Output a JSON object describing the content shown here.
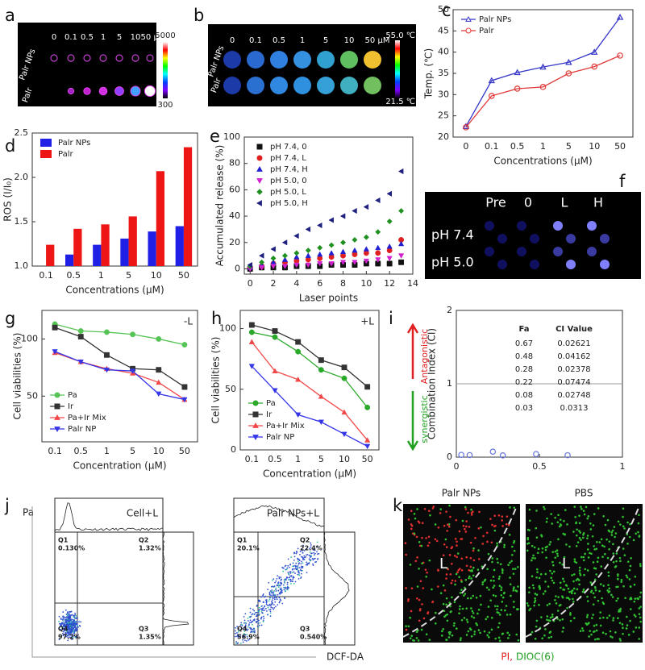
{
  "panels": {
    "a": {
      "label": "a",
      "columns": [
        "0",
        "0.1",
        "0.5",
        "1",
        "5",
        "10",
        "50 μM"
      ],
      "rows": [
        "Palr NPs",
        "Palr"
      ],
      "scale_max": "5000",
      "scale_min": "300"
    },
    "b": {
      "label": "b",
      "columns": [
        "0",
        "0.1",
        "0.5",
        "1",
        "5",
        "10",
        "50 μM"
      ],
      "rows": [
        "Palr NPs",
        "Palr"
      ],
      "scale_max": "55.0 ℃",
      "scale_min": "21.5 ℃"
    },
    "f": {
      "label": "f",
      "columns": [
        "Pre",
        "0",
        "L",
        "H"
      ],
      "rows": [
        "pH 7.4",
        "pH 5.0"
      ]
    },
    "j": {
      "label": "j",
      "y_label": "Pa",
      "x_label": "DCF-DA",
      "plots": [
        {
          "title": "Cell+L",
          "quadrants": [
            {
              "name": "Q1",
              "value": "0.130%"
            },
            {
              "name": "Q2",
              "value": "1.32%"
            },
            {
              "name": "Q3",
              "value": "1.35%"
            },
            {
              "name": "Q4",
              "value": "97.2%"
            }
          ]
        },
        {
          "title": "Palr NPs+L",
          "quadrants": [
            {
              "name": "Q1",
              "value": "20.1%"
            },
            {
              "name": "Q2",
              "value": "22.4%"
            },
            {
              "name": "Q3",
              "value": "0.540%"
            },
            {
              "name": "Q4",
              "value": "56.9%"
            }
          ]
        }
      ]
    },
    "k": {
      "label": "k",
      "images": [
        {
          "title": "Palr NPs",
          "region": "L"
        },
        {
          "title": "PBS",
          "region": "L"
        }
      ],
      "stain_red": "PI,",
      "stain_green": "DIOC(6)"
    }
  },
  "chart_data": [
    {
      "panel": "c",
      "type": "line",
      "categories": [
        "0",
        "0.1",
        "0.5",
        "1",
        "5",
        "10",
        "50"
      ],
      "y_label": "Temp. (℃)",
      "x_label": "Concentrations (μM)",
      "ylim": [
        20,
        50
      ],
      "yticks": [
        20,
        25,
        30,
        35,
        40,
        45,
        50
      ],
      "legend": "upper-left",
      "marker_style": "open",
      "series": [
        {
          "name": "Palr NPs",
          "color": "#3535c8",
          "marker": "triangle",
          "values": [
            22.5,
            33.3,
            35.2,
            36.5,
            37.6,
            40,
            48.2
          ]
        },
        {
          "name": "Palr",
          "color": "#e03a3a",
          "marker": "circle",
          "values": [
            22.3,
            29.7,
            31.4,
            31.8,
            35,
            36.6,
            39.2
          ]
        }
      ]
    },
    {
      "panel": "d",
      "type": "bar",
      "categories": [
        "0.1",
        "0.5",
        "1",
        "5",
        "10",
        "50"
      ],
      "y_label": "ROS (I/I₀)",
      "x_label": "Concentrations (μM)",
      "ylim": [
        1,
        2.5
      ],
      "yticks": [
        {
          "value": 1,
          "label": "1.0"
        },
        1.5,
        {
          "value": 2,
          "label": "2.0"
        },
        2.5
      ],
      "legend": "upper-left",
      "series": [
        {
          "name": "Palr NPs",
          "color": "#1f1fe6",
          "values": [
            null,
            1.13,
            1.24,
            1.31,
            1.39,
            1.45
          ]
        },
        {
          "name": "Palr",
          "color": "#ee1515",
          "values": [
            1.24,
            1.42,
            1.47,
            1.56,
            2.07,
            2.34
          ]
        }
      ]
    },
    {
      "panel": "e",
      "type": "scatter",
      "y_label": "Accumulated release (%)",
      "x_label": "Laser points",
      "x": [
        0,
        1,
        2,
        3,
        4,
        5,
        6,
        7,
        8,
        9,
        10,
        11,
        12,
        13
      ],
      "xlim": [
        -0.5,
        14
      ],
      "xticks": [
        0,
        2,
        4,
        6,
        8,
        10,
        12,
        14
      ],
      "ylim": [
        -4,
        100
      ],
      "yticks": [
        0,
        20,
        40,
        60,
        80,
        100
      ],
      "legend": "upper-left",
      "series": [
        {
          "name": "pH 7.4, 0",
          "color": "#111111",
          "marker": "square",
          "values": [
            0,
            1,
            1,
            1,
            2,
            2,
            2,
            3,
            3,
            3,
            4,
            4,
            4,
            5
          ]
        },
        {
          "name": "pH 7.4, L",
          "color": "#e02020",
          "marker": "circle",
          "values": [
            1,
            2,
            4,
            5,
            6,
            7,
            8,
            9,
            10,
            11,
            12,
            12,
            14,
            22
          ]
        },
        {
          "name": "pH 7.4, H",
          "color": "#2020d0",
          "marker": "triangle",
          "values": [
            1,
            3,
            5,
            7,
            9,
            10,
            11,
            12,
            13,
            14,
            15,
            16,
            17,
            19
          ]
        },
        {
          "name": "pH 5.0, 0",
          "color": "#d020d0",
          "marker": "triangle-down",
          "values": [
            0,
            1,
            2,
            2,
            3,
            3,
            4,
            4,
            5,
            5,
            6,
            7,
            8,
            10
          ]
        },
        {
          "name": "pH 5.0, L",
          "color": "#209020",
          "marker": "diamond",
          "values": [
            2,
            5,
            8,
            10,
            12,
            14,
            16,
            18,
            20,
            22,
            24,
            28,
            36,
            44
          ]
        },
        {
          "name": "pH 5.0, H",
          "color": "#202080",
          "marker": "triangle-left",
          "values": [
            3,
            10,
            15,
            20,
            25,
            30,
            33,
            37,
            40,
            44,
            47,
            52,
            57,
            74
          ]
        }
      ]
    },
    {
      "panel": "g",
      "type": "line",
      "annotation": "-L",
      "categories": [
        "0.1",
        "0.5",
        "1",
        "5",
        "10",
        "50"
      ],
      "y_label": "Cell viabilities (%)",
      "x_label": "Concentration (μM)",
      "ylim": [
        10,
        125
      ],
      "yticks": [
        50,
        100
      ],
      "legend": "lower-left",
      "series": [
        {
          "name": "Pa",
          "color": "#55c455",
          "marker": "circle",
          "values": [
            113,
            107,
            106,
            104,
            100,
            95
          ]
        },
        {
          "name": "Ir",
          "color": "#333333",
          "marker": "square",
          "values": [
            110,
            102,
            86,
            74,
            73,
            58
          ]
        },
        {
          "name": "Pa+Ir Mix",
          "color": "#f04848",
          "marker": "triangle",
          "values": [
            88,
            80,
            74,
            70,
            62,
            47
          ]
        },
        {
          "name": "Palr NP",
          "color": "#3535e8",
          "marker": "triangle-down",
          "values": [
            89,
            80,
            73,
            72,
            52,
            47
          ]
        }
      ]
    },
    {
      "panel": "h",
      "type": "line",
      "annotation": "+L",
      "categories": [
        "0.1",
        "0.5",
        "1",
        "5",
        "10",
        "50"
      ],
      "y_label": "Cell viabilities (%)",
      "x_label": "Concentration (μM)",
      "ylim": [
        0,
        115
      ],
      "yticks": [
        0,
        50,
        100
      ],
      "legend": "lower-left",
      "series": [
        {
          "name": "Pa",
          "color": "#2aa82a",
          "marker": "circle",
          "values": [
            97,
            93,
            81,
            66,
            59,
            35
          ]
        },
        {
          "name": "Ir",
          "color": "#333333",
          "marker": "square",
          "values": [
            103,
            98,
            89,
            74,
            68,
            52
          ]
        },
        {
          "name": "Pa+Ir Mix",
          "color": "#f04848",
          "marker": "triangle",
          "values": [
            89,
            65,
            58,
            44,
            31,
            8
          ]
        },
        {
          "name": "Palr NP",
          "color": "#3535e8",
          "marker": "triangle-down",
          "values": [
            69,
            49,
            29,
            23,
            13,
            3
          ]
        }
      ]
    },
    {
      "panel": "i",
      "type": "scatter",
      "y_label": "Combination Index (CI)",
      "x": [
        0.67,
        0.48,
        0.28,
        0.22,
        0.08,
        0.03
      ],
      "xlim": [
        0,
        1
      ],
      "xticks": [
        0,
        0.5,
        1
      ],
      "ylim": [
        0,
        2
      ],
      "yticks": [
        0,
        1,
        2
      ],
      "reference_line": 1,
      "marker_style": "open",
      "table_headers": [
        "Fa",
        "CI Value"
      ],
      "annotations": [
        "Antagonistic",
        "synergistic"
      ],
      "series": [
        {
          "color": "#6677dd",
          "marker": "circle",
          "values": [
            0.02621,
            0.04162,
            0.02378,
            0.07474,
            0.02748,
            0.0313
          ]
        }
      ]
    }
  ]
}
